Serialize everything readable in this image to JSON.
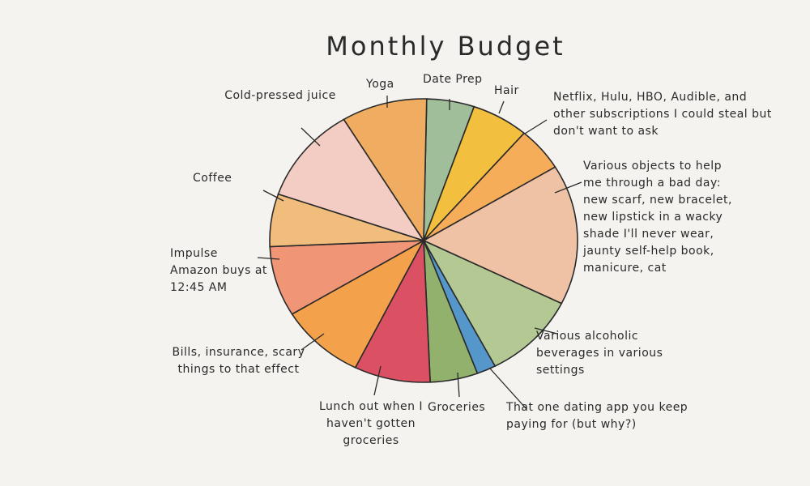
{
  "chart_data": {
    "type": "pie",
    "title": "Monthly Budget",
    "categories": [
      "Date Prep",
      "Hair",
      "Netflix, Hulu, HBO, Audible, and other subscriptions I could steal but don't want to ask",
      "Various objects to help me through a bad day: new scarf, new bracelet, new lipstick in a wacky shade I'll never wear, jaunty self-help book, manicure, cat",
      "Various alcoholic beverages in various settings",
      "That one dating app you keep paying for (but why?)",
      "Groceries",
      "Lunch out when I haven't gotten groceries",
      "Bills, insurance, scary things to that effect",
      "Impulse Amazon buys at 12:45 AM",
      "Coffee",
      "Cold-pressed juice",
      "Yoga"
    ],
    "values": [
      5,
      6,
      5,
      16,
      10,
      2,
      5,
      8,
      9,
      8,
      6,
      11,
      9
    ],
    "colors": [
      "#8fb48a",
      "#f2b51e",
      "#f4a040",
      "#edb898",
      "#a8c084",
      "#3a86c4",
      "#7fa555",
      "#d7324a",
      "#f2922e",
      "#ee8460",
      "#f0b368",
      "#f2c5bb",
      "#eea048"
    ]
  }
}
